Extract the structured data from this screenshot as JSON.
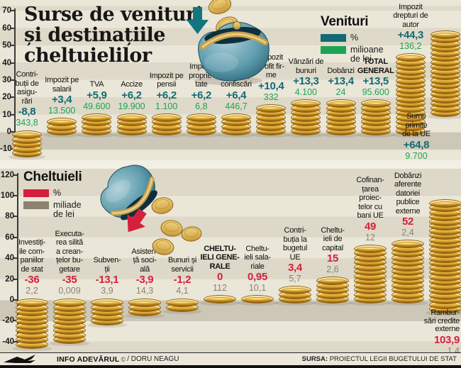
{
  "header": {
    "title": "Surse de venituri\nși destinațiile\ncheltuielilor"
  },
  "footer": {
    "credit_brand": "INFO ADEVĂRUL",
    "credit_reg": "©",
    "credit_author": "/ DORU NEAGU",
    "source_label": "SURSA:",
    "source_text": "PROIECTUL LEGII BUGETULUI DE STAT"
  },
  "chart_data": [
    {
      "type": "bar",
      "title": "Venituri",
      "legend": [
        {
          "label": "%",
          "color": "#136a74"
        },
        {
          "label": "milioane\nde lei",
          "color": "#1ea355"
        }
      ],
      "ylim": [
        -10,
        70
      ],
      "yticks": [
        70,
        60,
        50,
        40,
        30,
        20,
        10,
        0,
        -10
      ],
      "legend_position": "top-right",
      "grid": false,
      "columns": [
        {
          "label": "Contri-\nbuții de\nasigu-\nrări",
          "pct_value": -8.8,
          "pct": "-8,8",
          "amount": "343,8"
        },
        {
          "label": "Impozit pe\nsalarii",
          "pct_value": 3.4,
          "pct": "+3,4",
          "amount": "13.500"
        },
        {
          "label": "TVA",
          "pct_value": 5.9,
          "pct": "+5,9",
          "amount": "49.600"
        },
        {
          "label": "Accize",
          "pct_value": 6.2,
          "pct": "+6,2",
          "amount": "19.900"
        },
        {
          "label": "Impozit pe\npensii",
          "pct_value": 6.2,
          "pct": "+6,2",
          "amount": "1.100"
        },
        {
          "label": "Impozit\nproprie-\ntate",
          "pct_value": 6.2,
          "pct": "+6,2",
          "amount": "6,8"
        },
        {
          "label": "Amenzi,\nconfiscări",
          "pct_value": 6.4,
          "pct": "+6,4",
          "amount": "446,7"
        },
        {
          "label": "Impozit\nprofit fir-\nme",
          "pct_value": 10.4,
          "pct": "+10,4",
          "amount": "332"
        },
        {
          "label": "Vânzări de\nbunuri",
          "pct_value": 13.3,
          "pct": "+13,3",
          "amount": "4.100"
        },
        {
          "label": "Dobânzi",
          "pct_value": 13.4,
          "pct": "+13,4",
          "amount": "24"
        },
        {
          "label": "TOTAL\nGENERAL",
          "bold": true,
          "pct_value": 13.5,
          "pct": "+13,5",
          "amount": "95.600"
        },
        {
          "label": "Impozit\ndrepturi de\nautor",
          "pct_value": 44.3,
          "pct": "+44,3",
          "amount": "136,2"
        },
        {
          "label": "Sume\nprimite\nde la UE",
          "pct_value": 64.8,
          "pct": "+64,8",
          "amount": "9.700",
          "label_below": true
        }
      ]
    },
    {
      "type": "bar",
      "title": "Cheltuieli",
      "legend": [
        {
          "label": "%",
          "color": "#d51f3c"
        },
        {
          "label": "miliade\nde lei",
          "color": "#8d8271"
        }
      ],
      "ylim": [
        -40,
        120
      ],
      "yticks": [
        120,
        100,
        80,
        60,
        40,
        20,
        0,
        -20,
        -40
      ],
      "legend_position": "top-left",
      "grid": false,
      "columns": [
        {
          "label": "Investiți-\nile com-\npaniilor\nde stat",
          "pct_value": -36,
          "pct": "-36",
          "amount": "2,2"
        },
        {
          "label": "Executa-\nrea silită\na crean-\nțelor bu-\ngetare",
          "pct_value": -35,
          "pct": "-35",
          "amount": "0,009"
        },
        {
          "label": "Subven-\nții",
          "pct_value": -13.1,
          "pct": "-13,1",
          "amount": "3,9"
        },
        {
          "label": "Asisten-\nță soci-\nală",
          "pct_value": -3.9,
          "pct": "-3,9",
          "amount": "14,3"
        },
        {
          "label": "Bunuri și\nservicii",
          "pct_value": -1.2,
          "pct": "-1,2",
          "amount": "4,1"
        },
        {
          "label": "CHELTU-\nIELI GENE-\nRALE",
          "bold": true,
          "pct_value": 0,
          "pct": "0",
          "amount": "112"
        },
        {
          "label": "Cheltu-\nieli sala-\nriale",
          "pct_value": 0.95,
          "pct": "0,95",
          "amount": "10,1"
        },
        {
          "label": "Contri-\nbuția la\nbugetul\nUE",
          "pct_value": 3.4,
          "pct": "3,4",
          "amount": "5,7"
        },
        {
          "label": "Cheltu-\nieli de\ncapital",
          "pct_value": 15,
          "pct": "15",
          "amount": "2,6"
        },
        {
          "label": "Cofinan-\nțarea\nproiec-\ntelor cu\nbani UE",
          "pct_value": 49,
          "pct": "49",
          "amount": "12"
        },
        {
          "label": "Dobânzi\naferente\ndatoriei\npublice\nexterne",
          "pct_value": 52,
          "pct": "52",
          "amount": "2,4"
        },
        {
          "label": "Rambur-\nsări credite\nexterne",
          "pct_value": 103.9,
          "pct": "103,9",
          "amount": "1,4",
          "label_below": true
        }
      ]
    }
  ]
}
